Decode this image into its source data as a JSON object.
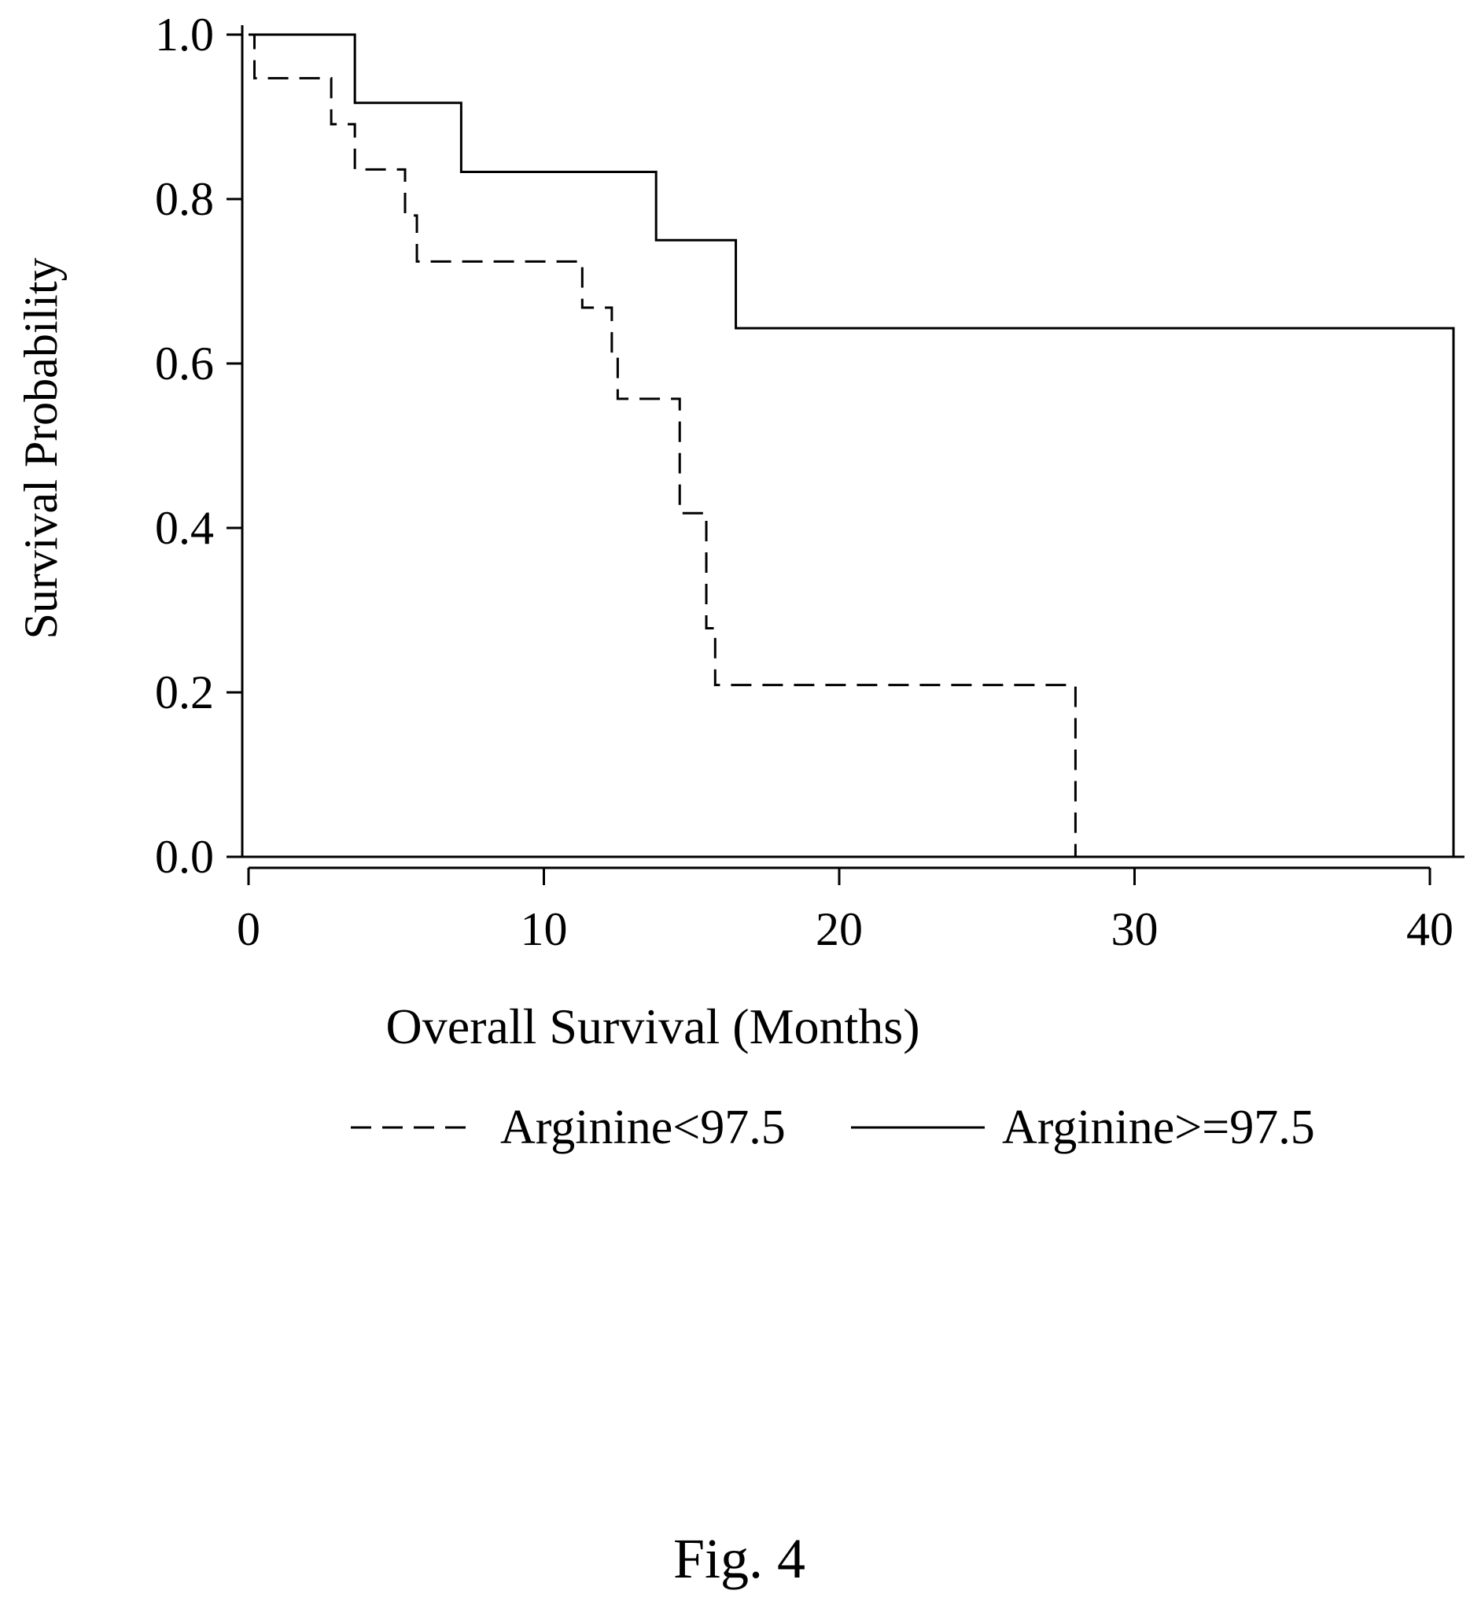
{
  "figure_label": "Fig. 4",
  "chart_data": {
    "type": "line",
    "subtype": "kaplan-meier-step",
    "title": "",
    "xlabel": "Overall Survival (Months)",
    "ylabel": "Survival Probability",
    "xlim": [
      0,
      41
    ],
    "ylim": [
      0,
      1
    ],
    "x_ticks": [
      0,
      10,
      20,
      30,
      40
    ],
    "x_tick_labels": [
      "0",
      "10",
      "20",
      "30",
      "40"
    ],
    "y_ticks": [
      0,
      0.2,
      0.4,
      0.6,
      0.8,
      1.0
    ],
    "y_tick_labels": [
      "0.0",
      "0.2",
      "0.4",
      "0.6",
      "0.8",
      "1.0"
    ],
    "grid": false,
    "legend_position": "bottom",
    "colors": {
      "line": "#000000",
      "background": "#ffffff"
    },
    "series": [
      {
        "name": "Arginine<97.5",
        "style": "dashed",
        "x": [
          0,
          0.2,
          2.8,
          3.6,
          5.3,
          5.7,
          11.3,
          12.3,
          12.5,
          14.6,
          15.5,
          15.8,
          28.0
        ],
        "y": [
          1.0,
          0.947,
          0.891,
          0.836,
          0.78,
          0.724,
          0.668,
          0.612,
          0.557,
          0.418,
          0.278,
          0.209,
          0.0
        ]
      },
      {
        "name": "Arginine>=97.5",
        "style": "solid",
        "x": [
          0,
          3.6,
          7.2,
          13.8,
          16.5,
          40.8
        ],
        "y": [
          1.0,
          0.917,
          0.833,
          0.75,
          0.643,
          0.0
        ]
      }
    ]
  }
}
